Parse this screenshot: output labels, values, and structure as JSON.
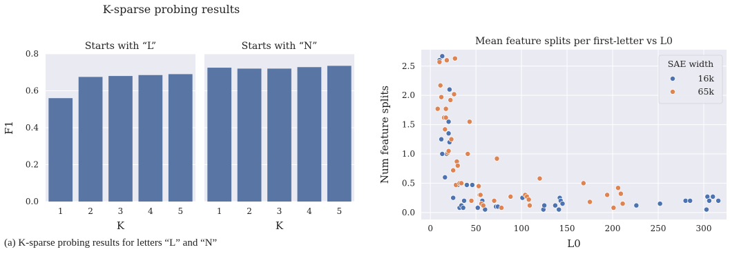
{
  "page": {
    "left_title": "K-sparse probing results",
    "caption": "(a) K-sparse probing results for letters “L” and “N”"
  },
  "chart_data": [
    {
      "type": "bar",
      "title": "Starts with “L”",
      "xlabel": "K",
      "ylabel": "F1",
      "categories": [
        "1",
        "2",
        "3",
        "4",
        "5"
      ],
      "values": [
        0.56,
        0.675,
        0.68,
        0.685,
        0.69
      ],
      "ylim": [
        0,
        0.8
      ],
      "yticks": [
        "0.0",
        "0.2",
        "0.4",
        "0.6",
        "0.8"
      ],
      "grid": true,
      "bar_color": "#5875a4",
      "background": "#eaeaf2"
    },
    {
      "type": "bar",
      "title": "Starts with “N”",
      "xlabel": "K",
      "ylabel": "",
      "categories": [
        "1",
        "2",
        "3",
        "4",
        "5"
      ],
      "values": [
        0.725,
        0.72,
        0.72,
        0.728,
        0.735
      ],
      "ylim": [
        0,
        0.8
      ],
      "grid": true,
      "bar_color": "#5875a4",
      "background": "#eaeaf2"
    },
    {
      "type": "scatter",
      "title": "Mean feature splits per first-letter vs L0",
      "xlabel": "L0",
      "ylabel": "Num feature splits",
      "xlim": [
        -10,
        325
      ],
      "ylim": [
        -0.12,
        2.78
      ],
      "xticks": [
        "0",
        "50",
        "100",
        "150",
        "200",
        "250",
        "300"
      ],
      "yticks": [
        "0.0",
        "0.5",
        "1.0",
        "1.5",
        "2.0",
        "2.5"
      ],
      "grid": true,
      "background": "#eaeaf2",
      "legend": {
        "title": "SAE width",
        "position": "top-right"
      },
      "series": [
        {
          "name": "16k",
          "color": "#4c72b0",
          "points": [
            [
              10,
              2.6
            ],
            [
              13,
              2.67
            ],
            [
              12,
              1.25
            ],
            [
              13,
              1.0
            ],
            [
              16,
              0.6
            ],
            [
              18,
              1.0
            ],
            [
              20,
              1.55
            ],
            [
              21,
              2.1
            ],
            [
              20,
              1.35
            ],
            [
              21,
              1.2
            ],
            [
              25,
              0.25
            ],
            [
              30,
              0.47
            ],
            [
              32,
              0.08
            ],
            [
              34,
              0.12
            ],
            [
              36,
              0.08
            ],
            [
              37,
              0.2
            ],
            [
              40,
              0.47
            ],
            [
              46,
              0.47
            ],
            [
              52,
              0.08
            ],
            [
              57,
              0.2
            ],
            [
              60,
              0.05
            ],
            [
              70,
              0.2
            ],
            [
              72,
              0.1
            ],
            [
              74,
              0.1
            ],
            [
              101,
              0.25
            ],
            [
              107,
              0.25
            ],
            [
              124,
              0.05
            ],
            [
              125,
              0.12
            ],
            [
              137,
              0.12
            ],
            [
              141,
              0.05
            ],
            [
              142,
              0.25
            ],
            [
              143,
              0.2
            ],
            [
              145,
              0.15
            ],
            [
              226,
              0.12
            ],
            [
              252,
              0.15
            ],
            [
              280,
              0.2
            ],
            [
              285,
              0.2
            ],
            [
              303,
              0.05
            ],
            [
              304,
              0.27
            ],
            [
              306,
              0.2
            ],
            [
              310,
              0.27
            ],
            [
              316,
              0.2
            ]
          ]
        },
        {
          "name": "65k",
          "color": "#dd8452",
          "points": [
            [
              8,
              1.77
            ],
            [
              10,
              2.57
            ],
            [
              11,
              2.17
            ],
            [
              12,
              1.97
            ],
            [
              15,
              1.62
            ],
            [
              16,
              1.42
            ],
            [
              17,
              1.77
            ],
            [
              17,
              1.62
            ],
            [
              18,
              2.6
            ],
            [
              19,
              1.02
            ],
            [
              20,
              1.05
            ],
            [
              22,
              1.92
            ],
            [
              23,
              1.25
            ],
            [
              25,
              0.72
            ],
            [
              26,
              2.02
            ],
            [
              27,
              2.63
            ],
            [
              28,
              0.47
            ],
            [
              29,
              0.87
            ],
            [
              30,
              0.8
            ],
            [
              32,
              0.5
            ],
            [
              34,
              0.5
            ],
            [
              41,
              1.0
            ],
            [
              43,
              1.55
            ],
            [
              45,
              0.2
            ],
            [
              53,
              0.45
            ],
            [
              54,
              0.3
            ],
            [
              55,
              0.3
            ],
            [
              56,
              0.15
            ],
            [
              58,
              0.12
            ],
            [
              70,
              0.2
            ],
            [
              73,
              0.92
            ],
            [
              78,
              0.08
            ],
            [
              88,
              0.27
            ],
            [
              104,
              0.3
            ],
            [
              106,
              0.27
            ],
            [
              108,
              0.22
            ],
            [
              109,
              0.12
            ],
            [
              120,
              0.58
            ],
            [
              168,
              0.5
            ],
            [
              175,
              0.18
            ],
            [
              194,
              0.3
            ],
            [
              201,
              0.08
            ],
            [
              206,
              0.42
            ],
            [
              209,
              0.32
            ],
            [
              211,
              0.15
            ]
          ]
        }
      ]
    }
  ]
}
